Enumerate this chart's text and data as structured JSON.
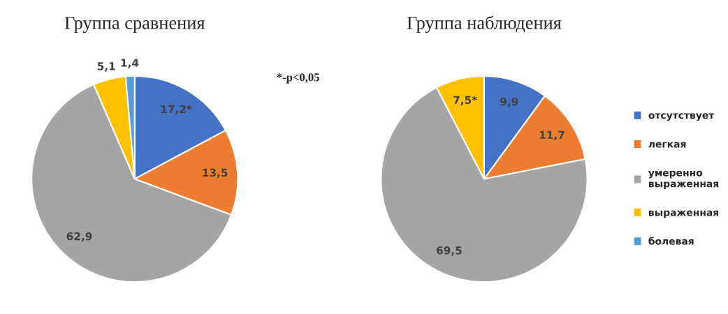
{
  "chart_data": [
    {
      "type": "pie",
      "title": "Группа сравнения",
      "categories": [
        null,
        null,
        null,
        null,
        null
      ],
      "values": [
        17.2,
        13.5,
        62.9,
        5.1,
        1.4
      ],
      "value_labels": [
        "17,2*",
        "13,5",
        "62,9",
        "5,1",
        "1,4"
      ],
      "colors": [
        "#4472c4",
        "#ed7d31",
        "#a5a5a5",
        "#ffc000",
        "#5b9bd5"
      ],
      "annotations": [
        "*-p<0,05"
      ]
    },
    {
      "type": "pie",
      "title": "Группа наблюдения",
      "categories": [
        "отсутствует",
        "легкая",
        "умеренно\nвыраженная",
        "выраженная",
        "болевая"
      ],
      "values": [
        9.9,
        11.7,
        69.5,
        7.5,
        null
      ],
      "value_labels": [
        "9,9",
        "11,7",
        "69,5",
        "7,5*",
        null
      ],
      "colors": [
        "#4472c4",
        "#ed7d31",
        "#a5a5a5",
        "#ffc000",
        "#5b9bd5"
      ],
      "legend": "right"
    }
  ]
}
